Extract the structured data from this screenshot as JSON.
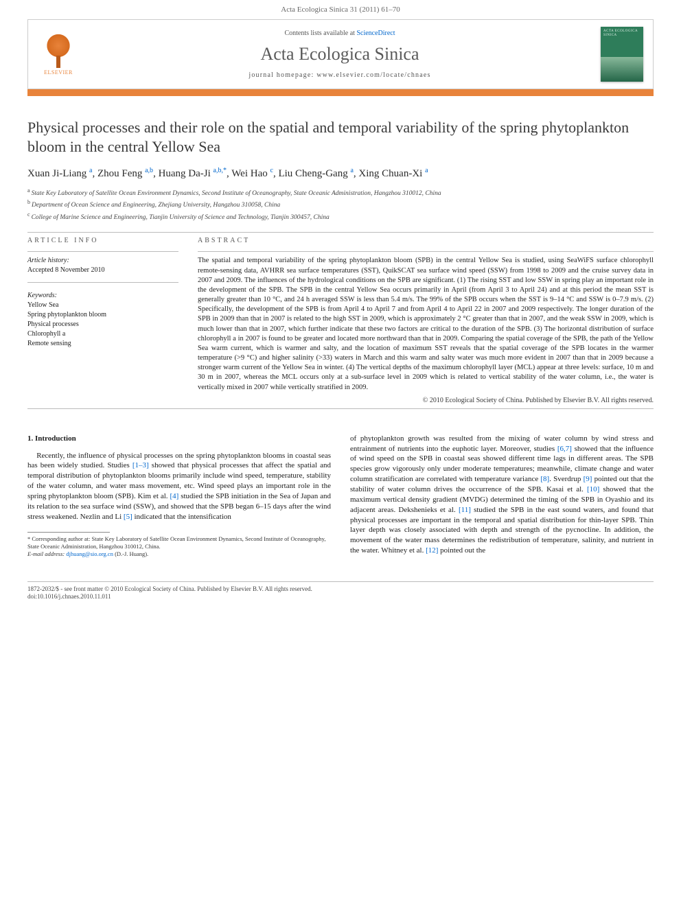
{
  "journal": {
    "header_ref": "Acta Ecologica Sinica 31 (2011) 61–70",
    "name": "Acta Ecologica Sinica",
    "contents_prefix": "Contents lists available at ",
    "contents_link": "ScienceDirect",
    "homepage_prefix": "journal homepage: ",
    "homepage_url": "www.elsevier.com/locate/chnaes",
    "elsevier": "ELSEVIER",
    "cover_text": "ACTA\nECOLOGICA\nSINICA"
  },
  "article": {
    "title": "Physical processes and their role on the spatial and temporal variability of the spring phytoplankton bloom in the central Yellow Sea",
    "authors_line_parts": [
      {
        "text": "Xuan Ji-Liang",
        "sup": "a"
      },
      {
        "text": ", Zhou Feng",
        "sup": "a,b"
      },
      {
        "text": ", Huang Da-Ji",
        "sup": "a,b,*"
      },
      {
        "text": ", Wei Hao",
        "sup": "c"
      },
      {
        "text": ", Liu Cheng-Gang",
        "sup": "a"
      },
      {
        "text": ", Xing Chuan-Xi",
        "sup": "a"
      }
    ],
    "affiliations": [
      {
        "sup": "a",
        "text": "State Key Laboratory of Satellite Ocean Environment Dynamics, Second Institute of Oceanography, State Oceanic Administration, Hangzhou 310012, China"
      },
      {
        "sup": "b",
        "text": "Department of Ocean Science and Engineering, Zhejiang University, Hangzhou 310058, China"
      },
      {
        "sup": "c",
        "text": "College of Marine Science and Engineering, Tianjin University of Science and Technology, Tianjin 300457, China"
      }
    ]
  },
  "info": {
    "label": "ARTICLE INFO",
    "history_heading": "Article history:",
    "history": "Accepted 8 November 2010",
    "keywords_heading": "Keywords:",
    "keywords": [
      "Yellow Sea",
      "Spring phytoplankton bloom",
      "Physical processes",
      "Chlorophyll a",
      "Remote sensing"
    ]
  },
  "abstract": {
    "label": "ABSTRACT",
    "text": "The spatial and temporal variability of the spring phytoplankton bloom (SPB) in the central Yellow Sea is studied, using SeaWiFS surface chlorophyll remote-sensing data, AVHRR sea surface temperatures (SST), QuikSCAT sea surface wind speed (SSW) from 1998 to 2009 and the cruise survey data in 2007 and 2009. The influences of the hydrological conditions on the SPB are significant. (1) The rising SST and low SSW in spring play an important role in the development of the SPB. The SPB in the central Yellow Sea occurs primarily in April (from April 3 to April 24) and at this period the mean SST is generally greater than 10 °C, and 24 h averaged SSW is less than 5.4 m/s. The 99% of the SPB occurs when the SST is 9–14 °C and SSW is 0–7.9 m/s. (2) Specifically, the development of the SPB is from April 4 to April 7 and from April 4 to April 22 in 2007 and 2009 respectively. The longer duration of the SPB in 2009 than that in 2007 is related to the high SST in 2009, which is approximately 2 °C greater than that in 2007, and the weak SSW in 2009, which is much lower than that in 2007, which further indicate that these two factors are critical to the duration of the SPB. (3) The horizontal distribution of surface chlorophyll a in 2007 is found to be greater and located more northward than that in 2009. Comparing the spatial coverage of the SPB, the path of the Yellow Sea warm current, which is warmer and salty, and the location of maximum SST reveals that the spatial coverage of the SPB locates in the warmer temperature (>9 °C) and higher salinity (>33) waters in March and this warm and salty water was much more evident in 2007 than that in 2009 because a stronger warm current of the Yellow Sea in winter. (4) The vertical depths of the maximum chlorophyll layer (MCL) appear at three levels: surface, 10 m and 30 m in 2007, whereas the MCL occurs only at a sub-surface level in 2009 which is related to vertical stability of the water column, i.e., the water is vertically mixed in 2007 while vertically stratified in 2009.",
    "copyright": "© 2010 Ecological Society of China. Published by Elsevier B.V. All rights reserved."
  },
  "body": {
    "intro_heading": "1. Introduction",
    "left_para": "Recently, the influence of physical processes on the spring phytoplankton blooms in coastal seas has been widely studied. Studies [1–3] showed that physical processes that affect the spatial and temporal distribution of phytoplankton blooms primarily include wind speed, temperature, stability of the water column, and water mass movement, etc. Wind speed plays an important role in the spring phytoplankton bloom (SPB). Kim et al. [4] studied the SPB initiation in the Sea of Japan and its relation to the sea surface wind (SSW), and showed that the SPB began 6–15 days after the wind stress weakened. Nezlin and Li [5] indicated that the intensification",
    "right_para": "of phytoplankton growth was resulted from the mixing of water column by wind stress and entrainment of nutrients into the euphotic layer. Moreover, studies [6,7] showed that the influence of wind speed on the SPB in coastal seas showed different time lags in different areas. The SPB species grow vigorously only under moderate temperatures; meanwhile, climate change and water column stratification are correlated with temperature variance [8]. Sverdrup [9] pointed out that the stability of water column drives the occurrence of the SPB. Kasai et al. [10] showed that the maximum vertical density gradient (MVDG) determined the timing of the SPB in Oyashio and its adjacent areas. Dekshenieks et al. [11] studied the SPB in the east sound waters, and found that physical processes are important in the temporal and spatial distribution for thin-layer SPB. Thin layer depth was closely associated with depth and strength of the pycnocline. In addition, the movement of the water mass determines the redistribution of temperature, salinity, and nutrient in the water. Whitney et al. [12] pointed out the"
  },
  "footnotes": {
    "corr_label": "* Corresponding author at: State Key Laboratory of Satellite Ocean Environment Dynamics, Second Institute of Oceanography, State Oceanic Administration, Hangzhou 310012, China.",
    "email_label": "E-mail address:",
    "email": "djhuang@sio.org.cn",
    "email_attrib": "(D.-J. Huang)."
  },
  "footer": {
    "line1": "1872-2032/$ - see front matter © 2010 Ecological Society of China. Published by Elsevier B.V. All rights reserved.",
    "line2": "doi:10.1016/j.chnaes.2010.11.011"
  },
  "colors": {
    "accent": "#e8833a",
    "link": "#0066cc",
    "rule": "#bbbbbb",
    "cover_green": "#2e7d5a"
  }
}
